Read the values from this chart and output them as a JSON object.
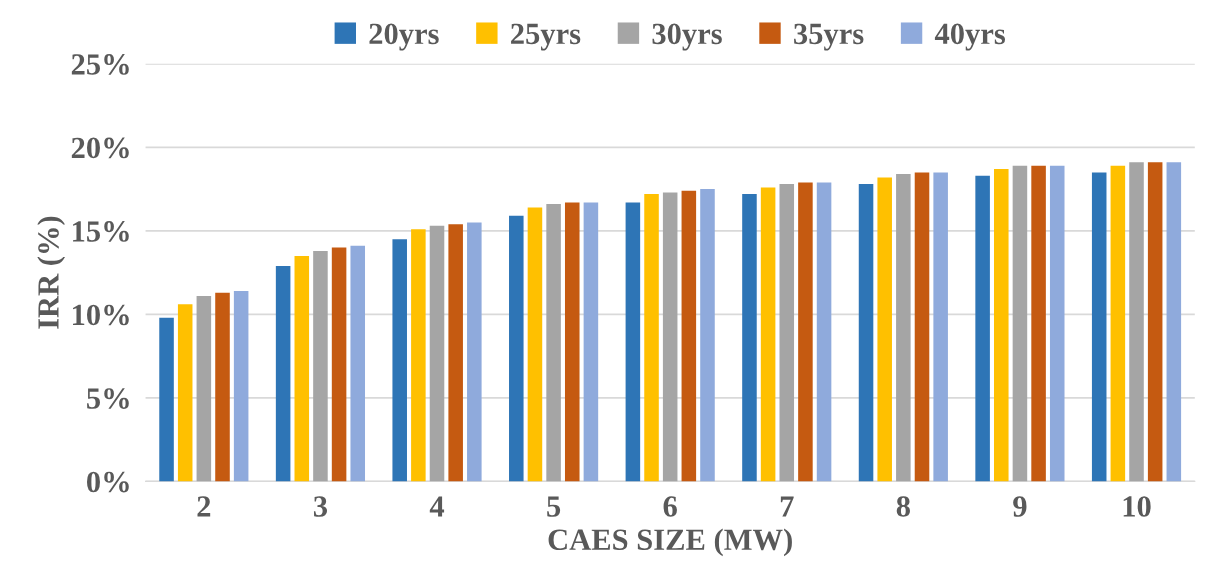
{
  "chart_data": {
    "type": "bar",
    "xlabel": "CAES SIZE (MW)",
    "ylabel": "IRR (%)",
    "categories": [
      "2",
      "3",
      "4",
      "5",
      "6",
      "7",
      "8",
      "9",
      "10"
    ],
    "series": [
      {
        "name": "20yrs",
        "color": "#2e75b6",
        "values": [
          9.8,
          12.9,
          14.5,
          15.9,
          16.7,
          17.2,
          17.8,
          18.3,
          18.5
        ]
      },
      {
        "name": "25yrs",
        "color": "#ffc000",
        "values": [
          10.6,
          13.5,
          15.1,
          16.4,
          17.2,
          17.6,
          18.2,
          18.7,
          18.9
        ]
      },
      {
        "name": "30yrs",
        "color": "#a5a5a5",
        "values": [
          11.1,
          13.8,
          15.3,
          16.6,
          17.3,
          17.8,
          18.4,
          18.9,
          19.1
        ]
      },
      {
        "name": "35yrs",
        "color": "#c55a11",
        "values": [
          11.3,
          14.0,
          15.4,
          16.7,
          17.4,
          17.9,
          18.5,
          18.9,
          19.1
        ]
      },
      {
        "name": "40yrs",
        "color": "#8faadc",
        "values": [
          11.4,
          14.1,
          15.5,
          16.7,
          17.5,
          17.9,
          18.5,
          18.9,
          19.1
        ]
      }
    ],
    "ylim": [
      0,
      25
    ],
    "yticks": [
      {
        "value": 0,
        "label": "0%"
      },
      {
        "value": 5,
        "label": "5%"
      },
      {
        "value": 10,
        "label": "10%"
      },
      {
        "value": 15,
        "label": "15%"
      },
      {
        "value": 20,
        "label": "20%"
      },
      {
        "value": 25,
        "label": "25%"
      }
    ],
    "grid": "y",
    "legend": "top"
  }
}
